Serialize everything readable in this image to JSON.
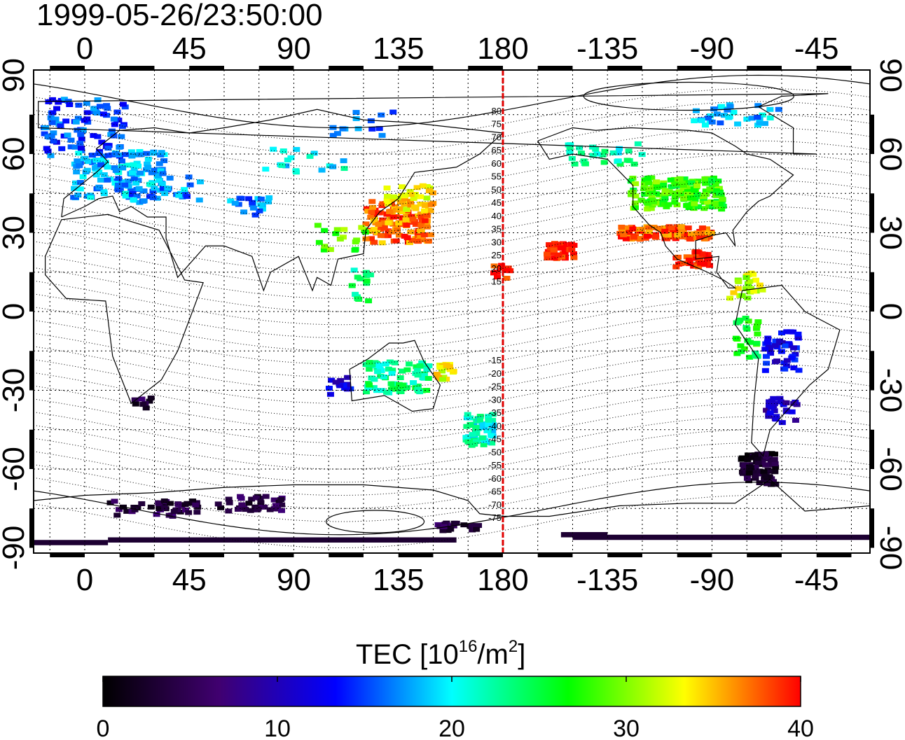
{
  "timestamp": "1999-05-26/23:50:00",
  "lon_ticks": [
    "0",
    "45",
    "90",
    "135",
    "180",
    "-135",
    "-90",
    "-45"
  ],
  "lat_ticks": [
    "90",
    "60",
    "30",
    "0",
    "-30",
    "-60",
    "-90"
  ],
  "map": {
    "lon_range": [
      -22,
      338
    ],
    "lat_range": [
      -92,
      92
    ],
    "grid": true,
    "projection": "equirectangular",
    "meridian_line": {
      "lon": 180,
      "color": "#e00000",
      "style": "dashed"
    }
  },
  "magnetic_lat_labels": {
    "north": [
      "80",
      "75",
      "70",
      "65",
      "60",
      "55",
      "50",
      "45",
      "40",
      "35",
      "30",
      "25",
      "20",
      "15"
    ],
    "south": [
      "-15",
      "-20",
      "-25",
      "-30",
      "-35",
      "-40",
      "-45",
      "-50",
      "-55",
      "-60",
      "-65",
      "-70",
      "-75"
    ]
  },
  "colorbar": {
    "title_prefix": "TEC  [10",
    "title_sup1": "16",
    "title_mid": "/m",
    "title_sup2": "2",
    "title_suffix": "]",
    "min": 0,
    "max": 40,
    "tick_labels": [
      "0",
      "10",
      "20",
      "30",
      "40"
    ],
    "stops": [
      "#000000",
      "#400070",
      "#0000ff",
      "#00ffff",
      "#00ff00",
      "#ffff00",
      "#ff0000"
    ]
  },
  "tec_clusters": [
    {
      "lon": 0,
      "lat": 70,
      "w": 35,
      "h": 22,
      "tec": 15,
      "n": 90,
      "seed": 1
    },
    {
      "lon": 15,
      "lat": 52,
      "w": 40,
      "h": 18,
      "tec": 18,
      "n": 130,
      "seed": 2
    },
    {
      "lon": 35,
      "lat": 47,
      "w": 30,
      "h": 12,
      "tec": 17,
      "n": 40,
      "seed": 3
    },
    {
      "lon": 95,
      "lat": 58,
      "w": 35,
      "h": 10,
      "tec": 20,
      "n": 18,
      "seed": 4
    },
    {
      "lon": 120,
      "lat": 72,
      "w": 40,
      "h": 10,
      "tec": 17,
      "n": 14,
      "seed": 5
    },
    {
      "lon": 70,
      "lat": 40,
      "w": 20,
      "h": 8,
      "tec": 17,
      "n": 20,
      "seed": 6
    },
    {
      "lon": 135,
      "lat": 34,
      "w": 28,
      "h": 16,
      "tec": 37,
      "n": 120,
      "seed": 7
    },
    {
      "lon": 140,
      "lat": 43,
      "w": 20,
      "h": 10,
      "tec": 34,
      "n": 40,
      "seed": 8
    },
    {
      "lon": 110,
      "lat": 28,
      "w": 22,
      "h": 10,
      "tec": 29,
      "n": 18,
      "seed": 9
    },
    {
      "lon": 120,
      "lat": 10,
      "w": 10,
      "h": 12,
      "tec": 24,
      "n": 14,
      "seed": 10
    },
    {
      "lon": 180,
      "lat": 15,
      "w": 8,
      "h": 6,
      "tec": 40,
      "n": 10,
      "seed": 11
    },
    {
      "lon": 205,
      "lat": 23,
      "w": 12,
      "h": 6,
      "tec": 40,
      "n": 40,
      "seed": 12
    },
    {
      "lon": 255,
      "lat": 45,
      "w": 40,
      "h": 12,
      "tec": 28,
      "n": 170,
      "seed": 13
    },
    {
      "lon": 250,
      "lat": 30,
      "w": 40,
      "h": 5,
      "tec": 38,
      "n": 110,
      "seed": 14
    },
    {
      "lon": 262,
      "lat": 20,
      "w": 15,
      "h": 6,
      "tec": 40,
      "n": 40,
      "seed": 15
    },
    {
      "lon": 225,
      "lat": 60,
      "w": 35,
      "h": 8,
      "tec": 22,
      "n": 30,
      "seed": 16
    },
    {
      "lon": 280,
      "lat": 75,
      "w": 40,
      "h": 8,
      "tec": 18,
      "n": 35,
      "seed": 17
    },
    {
      "lon": 285,
      "lat": 10,
      "w": 15,
      "h": 10,
      "tec": 32,
      "n": 25,
      "seed": 18
    },
    {
      "lon": 300,
      "lat": -15,
      "w": 15,
      "h": 15,
      "tec": 12,
      "n": 45,
      "seed": 19
    },
    {
      "lon": 285,
      "lat": -10,
      "w": 10,
      "h": 15,
      "tec": 26,
      "n": 25,
      "seed": 20
    },
    {
      "lon": 300,
      "lat": -38,
      "w": 14,
      "h": 10,
      "tec": 10,
      "n": 30,
      "seed": 21
    },
    {
      "lon": 290,
      "lat": -60,
      "w": 15,
      "h": 12,
      "tec": 3,
      "n": 90,
      "seed": 22
    },
    {
      "lon": 135,
      "lat": -25,
      "w": 28,
      "h": 12,
      "tec": 23,
      "n": 80,
      "seed": 23
    },
    {
      "lon": 170,
      "lat": -45,
      "w": 12,
      "h": 12,
      "tec": 21,
      "n": 55,
      "seed": 24
    },
    {
      "lon": 155,
      "lat": -23,
      "w": 12,
      "h": 6,
      "tec": 33,
      "n": 20,
      "seed": 25
    },
    {
      "lon": 30,
      "lat": -75,
      "w": 40,
      "h": 6,
      "tec": 4,
      "n": 45,
      "seed": 26
    },
    {
      "lon": 70,
      "lat": -73,
      "w": 30,
      "h": 6,
      "tec": 4,
      "n": 35,
      "seed": 27
    },
    {
      "lon": 25,
      "lat": -35,
      "w": 8,
      "h": 5,
      "tec": 4,
      "n": 8,
      "seed": 28
    },
    {
      "lon": 160,
      "lat": -82,
      "w": 20,
      "h": 3,
      "tec": 4,
      "n": 25,
      "seed": 29
    },
    {
      "lon": 110,
      "lat": -28,
      "w": 10,
      "h": 8,
      "tec": 12,
      "n": 15,
      "seed": 30
    }
  ],
  "antarctic_band": {
    "tec": 3
  }
}
